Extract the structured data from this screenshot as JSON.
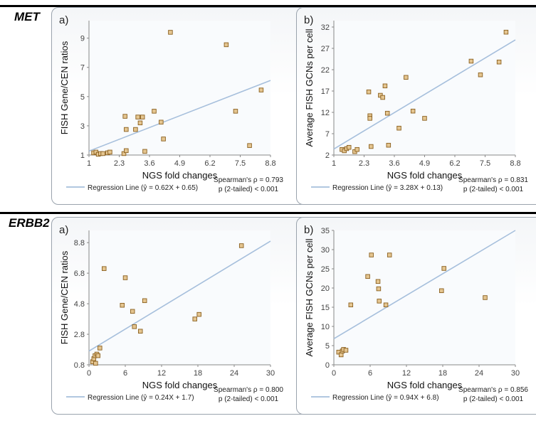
{
  "sections": [
    {
      "gene": "MET"
    },
    {
      "gene": "ERBB2"
    }
  ],
  "colors": {
    "line": "#a6bfdc",
    "marker_fill": "#e4c590",
    "marker_stroke": "#8a5f1e",
    "plot_bg": "#f9fbfd"
  },
  "chart_data": [
    {
      "type": "scatter",
      "panel_label": "a)",
      "xlabel": "NGS fold changes",
      "ylabel": "FISH Gene/CEN ratios",
      "xlim": [
        1,
        8.8
      ],
      "ylim": [
        1,
        10.2
      ],
      "xticks": [
        1,
        2.3,
        3.6,
        4.9,
        6.2,
        7.5,
        8.8
      ],
      "xtick_labels": [
        "1",
        "2.3",
        "3.6",
        "4.9",
        "6.2",
        "7.5",
        "8.8"
      ],
      "yticks": [
        1,
        3,
        5,
        7,
        9
      ],
      "ytick_labels": [
        "1",
        "3",
        "5",
        "7",
        "9"
      ],
      "points": [
        [
          1.2,
          1.15
        ],
        [
          1.3,
          1.2
        ],
        [
          1.4,
          1.05
        ],
        [
          1.5,
          1.1
        ],
        [
          1.6,
          1.1
        ],
        [
          1.8,
          1.15
        ],
        [
          1.9,
          1.2
        ],
        [
          2.5,
          1.1
        ],
        [
          2.6,
          1.3
        ],
        [
          2.55,
          3.65
        ],
        [
          2.6,
          2.75
        ],
        [
          3.0,
          2.75
        ],
        [
          3.1,
          3.6
        ],
        [
          3.2,
          3.2
        ],
        [
          3.3,
          3.6
        ],
        [
          3.4,
          1.25
        ],
        [
          3.8,
          4.0
        ],
        [
          4.1,
          3.25
        ],
        [
          4.2,
          2.1
        ],
        [
          4.5,
          9.4
        ],
        [
          6.9,
          8.55
        ],
        [
          7.3,
          4.0
        ],
        [
          7.9,
          1.65
        ],
        [
          8.4,
          5.45
        ]
      ],
      "line": {
        "slope": 0.62,
        "intercept": 0.65
      },
      "legend": "Regression Line (ŷ = 0.62X + 0.65)",
      "stat1": "Spearman's ρ = 0.793",
      "stat2": "p (2-tailed) < 0.001"
    },
    {
      "type": "scatter",
      "panel_label": "b)",
      "xlabel": "NGS fold changes",
      "ylabel": "Average FISH GCNs per cell",
      "xlim": [
        1,
        8.8
      ],
      "ylim": [
        2,
        33.5
      ],
      "xticks": [
        1,
        2.3,
        3.6,
        4.9,
        6.2,
        7.5,
        8.8
      ],
      "xtick_labels": [
        "1",
        "2.3",
        "3.6",
        "4.9",
        "6.2",
        "7.5",
        "8.8"
      ],
      "yticks": [
        2,
        7,
        12,
        17,
        22,
        27,
        32
      ],
      "ytick_labels": [
        "2",
        "7",
        "12",
        "17",
        "22",
        "27",
        "32"
      ],
      "points": [
        [
          1.35,
          3.3
        ],
        [
          1.45,
          3.0
        ],
        [
          1.55,
          3.5
        ],
        [
          1.65,
          3.8
        ],
        [
          1.9,
          2.8
        ],
        [
          2.0,
          3.3
        ],
        [
          2.5,
          16.8
        ],
        [
          2.55,
          11.2
        ],
        [
          2.55,
          10.6
        ],
        [
          2.6,
          4.0
        ],
        [
          3.0,
          16.0
        ],
        [
          3.1,
          15.5
        ],
        [
          3.2,
          18.2
        ],
        [
          3.3,
          11.8
        ],
        [
          3.35,
          4.3
        ],
        [
          3.8,
          8.3
        ],
        [
          4.1,
          20.2
        ],
        [
          4.4,
          12.3
        ],
        [
          4.9,
          10.6
        ],
        [
          6.9,
          24.0
        ],
        [
          7.3,
          20.8
        ],
        [
          8.1,
          23.8
        ],
        [
          8.4,
          30.8
        ]
      ],
      "line": {
        "slope": 3.28,
        "intercept": 0.13
      },
      "legend": "Regression Line (ŷ = 3.28X + 0.13)",
      "stat1": "Spearman's ρ = 0.831",
      "stat2": "p (2-tailed) < 0.001"
    },
    {
      "type": "scatter",
      "panel_label": "a)",
      "xlabel": "NGS fold changes",
      "ylabel": "FISH Gene/CEN ratios",
      "xlim": [
        0,
        30
      ],
      "ylim": [
        0.8,
        9.6
      ],
      "xticks": [
        0,
        6,
        12,
        18,
        24,
        30
      ],
      "xtick_labels": [
        "0",
        "6",
        "12",
        "18",
        "24",
        "30"
      ],
      "yticks": [
        0.8,
        2.8,
        4.8,
        6.8,
        8.8
      ],
      "ytick_labels": [
        "0.8",
        "2.8",
        "4.8",
        "6.8",
        "8.8"
      ],
      "points": [
        [
          0.6,
          1.0
        ],
        [
          0.8,
          1.2
        ],
        [
          1.0,
          1.4
        ],
        [
          1.1,
          0.9
        ],
        [
          1.3,
          1.5
        ],
        [
          1.5,
          1.4
        ],
        [
          1.8,
          1.9
        ],
        [
          2.5,
          7.1
        ],
        [
          5.5,
          4.7
        ],
        [
          6.0,
          6.5
        ],
        [
          7.2,
          4.3
        ],
        [
          7.5,
          3.3
        ],
        [
          8.5,
          3.0
        ],
        [
          9.2,
          5.0
        ],
        [
          17.5,
          3.8
        ],
        [
          18.2,
          4.1
        ],
        [
          25.2,
          8.6
        ]
      ],
      "line": {
        "slope": 0.24,
        "intercept": 1.7
      },
      "legend": "Regression Line (ŷ = 0.24X + 1.7)",
      "stat1": "Spearman's ρ = 0.800",
      "stat2": "p (2-tailed) < 0.001"
    },
    {
      "type": "scatter",
      "panel_label": "b)",
      "xlabel": "NGS fold changes",
      "ylabel": "Average FISH GCNs per cell",
      "xlim": [
        0,
        30
      ],
      "ylim": [
        0,
        35
      ],
      "xticks": [
        0,
        6,
        12,
        18,
        24,
        30
      ],
      "xtick_labels": [
        "0",
        "6",
        "12",
        "18",
        "24",
        "30"
      ],
      "yticks": [
        0,
        5,
        10,
        15,
        20,
        25,
        30,
        35
      ],
      "ytick_labels": [
        "0",
        "5",
        "10",
        "15",
        "20",
        "25",
        "30",
        "35"
      ],
      "points": [
        [
          0.8,
          3.3
        ],
        [
          1.2,
          2.6
        ],
        [
          1.4,
          3.6
        ],
        [
          1.6,
          4.0
        ],
        [
          2.0,
          3.8
        ],
        [
          2.8,
          15.6
        ],
        [
          5.6,
          23.0
        ],
        [
          6.2,
          28.6
        ],
        [
          7.3,
          21.7
        ],
        [
          7.4,
          19.8
        ],
        [
          7.5,
          16.6
        ],
        [
          8.6,
          15.6
        ],
        [
          9.2,
          28.6
        ],
        [
          17.8,
          19.3
        ],
        [
          18.2,
          25.1
        ],
        [
          25.0,
          17.5
        ]
      ],
      "line": {
        "slope": 0.94,
        "intercept": 6.8
      },
      "legend": "Regression Line (ŷ = 0.94X + 6.8)",
      "stat1": "Spearman's ρ = 0.856",
      "stat2": "p (2-tailed) < 0.001"
    }
  ]
}
